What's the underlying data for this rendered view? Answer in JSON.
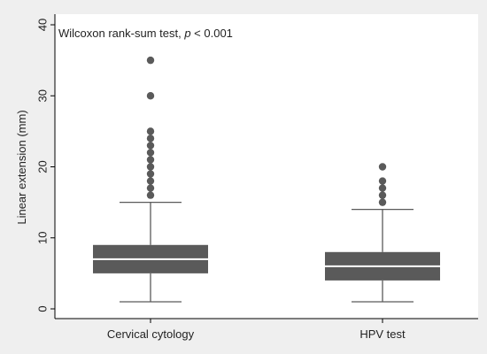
{
  "chart_data": {
    "type": "box",
    "annotation": {
      "prefix": "Wilcoxon rank-sum test, ",
      "italic": "p",
      "suffix": " < 0.001"
    },
    "ylabel": "Linear extension (mm)",
    "xlabel": "",
    "ylim": [
      0,
      40
    ],
    "yticks": [
      0,
      10,
      20,
      30,
      40
    ],
    "grid": false,
    "categories": [
      "Cervical cytology",
      "HPV test"
    ],
    "boxes": [
      {
        "category": "Cervical cytology",
        "whisker_low": 1,
        "q1": 5,
        "median": 7,
        "q3": 9,
        "whisker_high": 15,
        "outliers": [
          16,
          17,
          18,
          19,
          20,
          21,
          22,
          23,
          24,
          25,
          30,
          35
        ]
      },
      {
        "category": "HPV test",
        "whisker_low": 1,
        "q1": 4,
        "median": 6,
        "q3": 8,
        "whisker_high": 14,
        "outliers": [
          15,
          16,
          17,
          18,
          20
        ]
      }
    ],
    "colors": {
      "box_fill": "#5a5a5a",
      "median_line": "#ffffff",
      "whisker": "#5a5a5a",
      "outlier": "#5a5a5a",
      "plot_bg": "#ffffff",
      "page_bg": "#efefef"
    }
  }
}
